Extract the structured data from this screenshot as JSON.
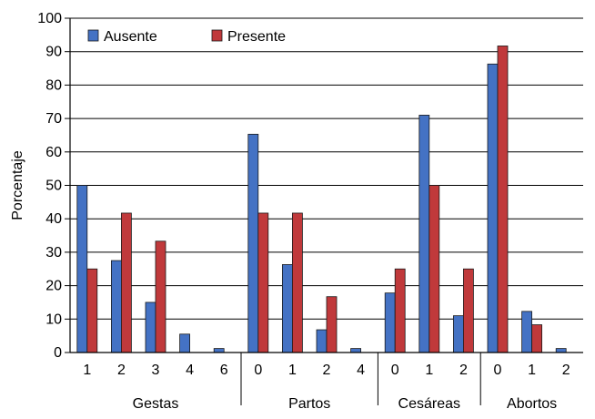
{
  "chart_data": {
    "type": "bar",
    "ylabel": "Porcentaje",
    "ylim": [
      0,
      100
    ],
    "yticks": [
      "0",
      "10",
      "20",
      "30",
      "40",
      "50",
      "60",
      "70",
      "80",
      "90",
      "100"
    ],
    "grid": true,
    "legend_position": "top-left",
    "colors": {
      "Ausente": "#4472c4",
      "Presente": "#c0393b"
    },
    "groups": [
      {
        "label": "Gestas",
        "categories": [
          "1",
          "2",
          "3",
          "4",
          "6"
        ]
      },
      {
        "label": "Partos",
        "categories": [
          "0",
          "1",
          "2",
          "4"
        ]
      },
      {
        "label": "Cesáreas",
        "categories": [
          "0",
          "1",
          "2"
        ]
      },
      {
        "label": "Abortos",
        "categories": [
          "0",
          "1",
          "2"
        ]
      }
    ],
    "categories": [
      "1",
      "2",
      "3",
      "4",
      "6",
      "0",
      "1",
      "2",
      "4",
      "0",
      "1",
      "2",
      "0",
      "1",
      "2"
    ],
    "series": [
      {
        "name": "Ausente",
        "values": [
          50,
          27.5,
          15,
          5.5,
          1.2,
          65.3,
          26.3,
          6.8,
          1.2,
          17.8,
          71,
          11,
          86.3,
          12.3,
          1.2
        ]
      },
      {
        "name": "Presente",
        "values": [
          25,
          41.7,
          33.3,
          0,
          0,
          41.7,
          41.7,
          16.7,
          0,
          25,
          50,
          25,
          91.7,
          8.3,
          0
        ]
      }
    ]
  }
}
